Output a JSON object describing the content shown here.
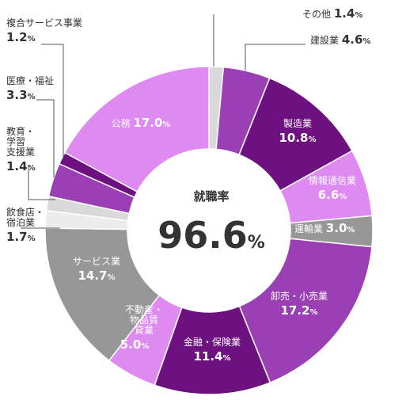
{
  "chart_data": {
    "type": "pie",
    "variant": "donut",
    "center_label": "就職率",
    "center_value": "96.6",
    "unit": "%",
    "slices": [
      {
        "label": "その他",
        "value": 1.4,
        "color": "#d9d9d9"
      },
      {
        "label": "建設業",
        "value": 4.6,
        "color": "#9b3fb5"
      },
      {
        "label": "製造業",
        "value": 10.8,
        "color": "#6e1180"
      },
      {
        "label": "情報通信業",
        "value": 6.6,
        "color": "#df8af1"
      },
      {
        "label": "運輸業",
        "value": 3.0,
        "color": "#979797"
      },
      {
        "label": "卸売・小売業",
        "value": 17.2,
        "color": "#9b3fb5"
      },
      {
        "label": "金融・保険業",
        "value": 11.4,
        "color": "#6e1180"
      },
      {
        "label": "不動産・物品賃貸業",
        "value": 5.0,
        "color": "#df8af1"
      },
      {
        "label": "サービス業",
        "value": 14.7,
        "color": "#979797"
      },
      {
        "label": "飲食店・宿泊業",
        "value": 1.7,
        "color": "#ececec"
      },
      {
        "label": "教育・学習支援業",
        "value": 1.4,
        "color": "#d9d9d9"
      },
      {
        "label": "医療・福祉",
        "value": 3.3,
        "color": "#9b3fb5"
      },
      {
        "label": "複合サービス事業",
        "value": 1.2,
        "color": "#6e1180"
      },
      {
        "label": "公務",
        "value": 17.0,
        "color": "#df8af1"
      }
    ]
  }
}
